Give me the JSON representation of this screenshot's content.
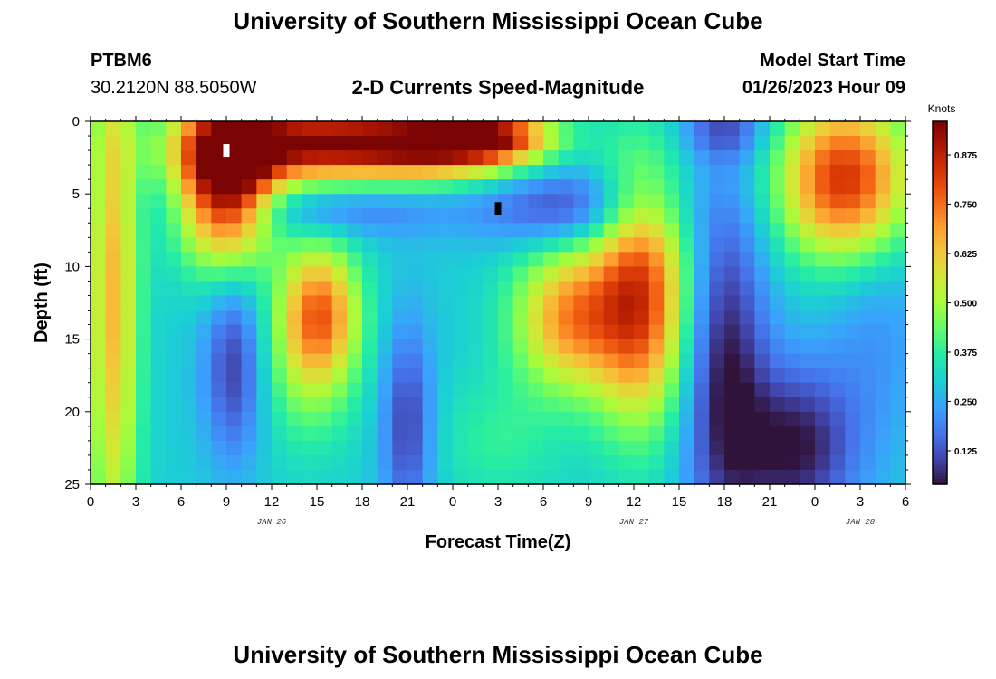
{
  "header": {
    "title": "University of Southern Mississippi Ocean Cube",
    "station": "PTBM6",
    "coords": "30.2120N  88.5050W",
    "subtitle": "2-D Currents Speed-Magnitude",
    "start_label": "Model Start Time",
    "start_value": "01/26/2023 Hour 09"
  },
  "footer": {
    "title": "University of Southern Mississippi Ocean Cube"
  },
  "chart_data": {
    "type": "heatmap",
    "xlabel": "Forecast Time(Z)",
    "ylabel": "Depth (ft)",
    "x_range_hours": [
      0,
      54
    ],
    "x_step_hours": 1,
    "y_range": [
      0,
      25
    ],
    "y_step": 1,
    "x_ticks": [
      "0",
      "3",
      "6",
      "9",
      "12",
      "15",
      "18",
      "21",
      "0",
      "3",
      "6",
      "9",
      "12",
      "15",
      "18",
      "21",
      "0",
      "3",
      "6"
    ],
    "y_ticks": [
      0,
      5,
      10,
      15,
      20,
      25
    ],
    "date_labels": [
      {
        "label": "JAN 26",
        "hour": 12
      },
      {
        "label": "JAN 27",
        "hour": 36
      },
      {
        "label": "JAN 28",
        "hour": 51
      }
    ],
    "colorbar": {
      "unit": "Knots",
      "min": 0.04,
      "max": 0.96,
      "ticks": [
        "0.875",
        "0.750",
        "0.625",
        "0.500",
        "0.375",
        "0.250",
        "0.125"
      ],
      "tick_values": [
        0.875,
        0.75,
        0.625,
        0.5,
        0.375,
        0.25,
        0.125
      ]
    },
    "colormap": [
      "#30123b",
      "#4145ab",
      "#4675ed",
      "#39a2fc",
      "#1bcfd4",
      "#24eca6",
      "#61fc6c",
      "#a4fc3b",
      "#d1e834",
      "#f3c63a",
      "#fe9b2d",
      "#f36315",
      "#d93806",
      "#b11901",
      "#7a0403"
    ],
    "background": 0.3,
    "features": [
      {
        "t": 1.5,
        "d": 12,
        "st": 1.2,
        "sd": 14,
        "a": 0.35
      },
      {
        "t": 9,
        "d": 4,
        "st": 2.2,
        "sd": 3.8,
        "a": 0.7
      },
      {
        "t": 14,
        "d": 1.5,
        "st": 5,
        "sd": 1.8,
        "a": 0.6
      },
      {
        "t": 23,
        "d": 1.5,
        "st": 4,
        "sd": 1.6,
        "a": 0.6
      },
      {
        "t": 27,
        "d": 1,
        "st": 2.5,
        "sd": 1.2,
        "a": 0.35
      },
      {
        "t": 16,
        "d": 6.2,
        "st": 6,
        "sd": 1.3,
        "a": -0.12
      },
      {
        "t": 15.2,
        "d": 13,
        "st": 1.8,
        "sd": 3.2,
        "a": 0.4
      },
      {
        "t": 14.5,
        "d": 17,
        "st": 2.2,
        "sd": 4,
        "a": 0.15
      },
      {
        "t": 9.5,
        "d": 17,
        "st": 1.4,
        "sd": 4.5,
        "a": -0.2
      },
      {
        "t": 21,
        "d": 21,
        "st": 1.2,
        "sd": 5,
        "a": -0.2
      },
      {
        "t": 31.8,
        "d": 13.5,
        "st": 2.6,
        "sd": 3.5,
        "a": 0.4
      },
      {
        "t": 32,
        "d": 6,
        "st": 4,
        "sd": 2,
        "a": -0.2
      },
      {
        "t": 27,
        "d": 22,
        "st": 3,
        "sd": 3,
        "a": 0.08
      },
      {
        "t": 36.5,
        "d": 12,
        "st": 2.2,
        "sd": 6,
        "a": 0.5
      },
      {
        "t": 42,
        "d": 17,
        "st": 2,
        "sd": 9,
        "a": -0.25
      },
      {
        "t": 46.8,
        "d": 22.5,
        "st": 2.8,
        "sd": 4,
        "a": -0.25
      },
      {
        "t": 42,
        "d": 0.5,
        "st": 2,
        "sd": 1.5,
        "a": -0.15
      },
      {
        "t": 50,
        "d": 4,
        "st": 3,
        "sd": 3.8,
        "a": 0.55
      },
      {
        "t": 52,
        "d": 14,
        "st": 2.5,
        "sd": 6,
        "a": -0.08
      }
    ],
    "markers": [
      {
        "t": 9,
        "d": 2,
        "color": "#ffffff"
      },
      {
        "t": 27,
        "d": 6,
        "color": "#000000"
      }
    ]
  }
}
